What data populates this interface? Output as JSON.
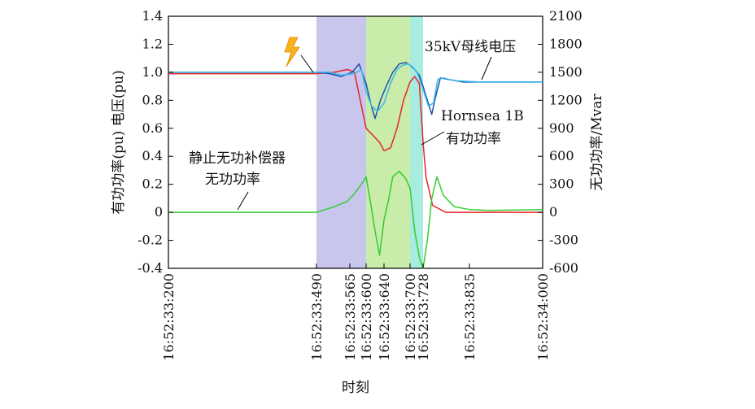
{
  "chart_data": {
    "type": "line",
    "xlabel": "时刻",
    "ylabel_left": "有功功率(pu)  电压(pu)",
    "ylabel_right": "无功功率/Mvar",
    "x_tick_labels": [
      "16:52:33:200",
      "16:52:33:490",
      "16:52:33:565",
      "16:52:33:600",
      "16:52:33:640",
      "16:52:33:700",
      "16:52:33:728",
      "16:52:33:835",
      "16:52:34:000"
    ],
    "x_tick_values": [
      200,
      490,
      565,
      600,
      640,
      700,
      728,
      835,
      1000
    ],
    "ylim_left": [
      -0.4,
      1.4
    ],
    "yticks_left": [
      "-0.4",
      "-0.2",
      "0",
      "0.2",
      "0.4",
      "0.6",
      "0.8",
      "1.0",
      "1.2",
      "1.4"
    ],
    "ylim_right": [
      -600,
      2100
    ],
    "yticks_right": [
      "-600",
      "-300",
      "0",
      "300",
      "600",
      "900",
      "1200",
      "1500",
      "1800",
      "2100"
    ],
    "shaded_regions": [
      {
        "from": 490,
        "to": 600,
        "color": "#c9c6ee"
      },
      {
        "from": 600,
        "to": 700,
        "color": "#c9ecaa"
      },
      {
        "from": 700,
        "to": 728,
        "color": "#a8ecdf"
      }
    ],
    "series": [
      {
        "axis": "left",
        "color": "#e8232a",
        "x": [
          200,
          490,
          530,
          560,
          575,
          600,
          615,
          630,
          640,
          655,
          670,
          685,
          700,
          710,
          720,
          728,
          735,
          750,
          780,
          835,
          900,
          1000
        ],
        "y": [
          0.99,
          0.99,
          1.0,
          1.02,
          1.0,
          0.6,
          0.55,
          0.5,
          0.44,
          0.46,
          0.6,
          0.8,
          0.93,
          0.97,
          0.92,
          0.5,
          0.25,
          0.05,
          0.0,
          0.0,
          0.0,
          0.0
        ]
      },
      {
        "axis": "left",
        "color": "#1f4fa8",
        "x": [
          200,
          490,
          520,
          545,
          570,
          585,
          600,
          610,
          620,
          632,
          645,
          660,
          675,
          690,
          700,
          710,
          720,
          728,
          735,
          748,
          755,
          768,
          785,
          820,
          880,
          1000
        ],
        "y": [
          1.0,
          1.0,
          0.99,
          0.97,
          1.0,
          1.06,
          0.92,
          0.78,
          0.67,
          0.8,
          0.9,
          1.0,
          1.06,
          1.07,
          1.05,
          1.02,
          0.98,
          0.9,
          0.83,
          0.7,
          0.8,
          0.96,
          0.95,
          0.93,
          0.93,
          0.93
        ]
      },
      {
        "axis": "left",
        "color": "#39b8e8",
        "x": [
          200,
          490,
          520,
          545,
          575,
          590,
          600,
          612,
          625,
          640,
          655,
          670,
          683,
          695,
          705,
          715,
          728,
          740,
          752,
          762,
          775,
          800,
          860,
          1000
        ],
        "y": [
          1.0,
          1.0,
          1.0,
          0.98,
          0.99,
          1.02,
          0.86,
          0.76,
          0.72,
          0.78,
          0.92,
          1.02,
          1.05,
          1.06,
          1.04,
          1.0,
          0.88,
          0.76,
          0.78,
          0.95,
          0.96,
          0.94,
          0.93,
          0.93
        ]
      },
      {
        "axis": "right",
        "color": "#33cc33",
        "x": [
          200,
          490,
          510,
          530,
          545,
          560,
          575,
          590,
          600,
          610,
          620,
          630,
          640,
          650,
          660,
          675,
          690,
          700,
          710,
          720,
          728,
          738,
          748,
          760,
          775,
          800,
          835,
          880,
          1000
        ],
        "y": [
          0,
          0,
          30,
          60,
          90,
          120,
          200,
          300,
          380,
          100,
          -200,
          -460,
          -80,
          120,
          380,
          440,
          360,
          260,
          -200,
          -480,
          -600,
          -300,
          150,
          380,
          180,
          60,
          30,
          20,
          30
        ]
      }
    ],
    "annotations": {
      "voltage": "35kV母线电压",
      "hornsea_line1": "Hornsea 1B",
      "hornsea_line2": "有功功率",
      "svc_line1": "静止无功补偿器",
      "svc_line2": "无功功率"
    }
  }
}
